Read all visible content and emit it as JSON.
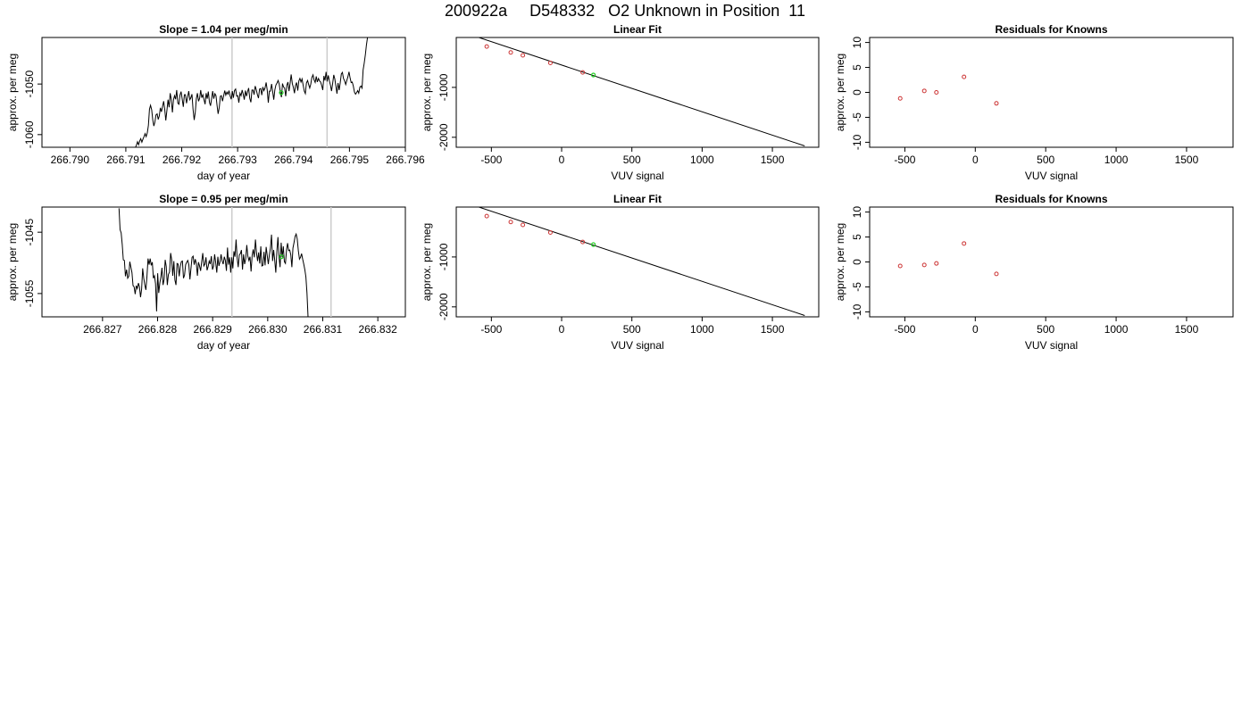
{
  "page_title": "200922a     D548332   O2 Unknown in Position  11",
  "colors": {
    "line": "#000000",
    "known_point": "#cc3333",
    "unknown_point": "#22cc22",
    "vline": "#cccccc",
    "frame": "#000000"
  },
  "chart_data": [
    {
      "type": "line",
      "title": "Slope =  1.04  per meg/min",
      "xlabel": "day of year",
      "ylabel": "approx. per meg",
      "xlim": [
        266.7895,
        266.796
      ],
      "ylim": [
        -1062.5,
        -1040.8
      ],
      "xticks": [
        "266.790",
        "266.791",
        "266.792",
        "266.793",
        "266.794",
        "266.795",
        "266.796"
      ],
      "xtick_values": [
        266.79,
        266.791,
        266.792,
        266.793,
        266.794,
        266.795,
        266.796
      ],
      "yticks": [
        "-1060",
        "-1050"
      ],
      "ytick_values": [
        -1060,
        -1050
      ],
      "vlines": [
        266.7929,
        266.7946
      ],
      "unknown_point": {
        "x": 266.79378,
        "y": -1051.7
      },
      "series": [
        {
          "x_start": 266.79115,
          "x_step": 1.95e-05,
          "values": [
            -1063.2,
            -1062.6,
            -1062.1,
            -1061.4,
            -1062.0,
            -1061.3,
            -1060.8,
            -1061.5,
            -1060.9,
            -1060.4,
            -1059.8,
            -1060.4,
            -1059.6,
            -1058.2,
            -1055.0,
            -1054.2,
            -1055.1,
            -1057.1,
            -1058.3,
            -1057.5,
            -1056.1,
            -1055.9,
            -1057.0,
            -1056.3,
            -1054.7,
            -1055.5,
            -1054.4,
            -1053.4,
            -1055.0,
            -1057.2,
            -1055.3,
            -1053.1,
            -1054.6,
            -1051.8,
            -1053.0,
            -1055.6,
            -1053.1,
            -1052.3,
            -1053.0,
            -1051.2,
            -1053.8,
            -1054.0,
            -1052.2,
            -1051.5,
            -1052.9,
            -1054.5,
            -1052.1,
            -1052.1,
            -1053.8,
            -1052.6,
            -1051.4,
            -1053.1,
            -1052.7,
            -1052.0,
            -1055.0,
            -1057.1,
            -1055.6,
            -1052.9,
            -1051.8,
            -1053.4,
            -1052.8,
            -1051.2,
            -1052.7,
            -1052.1,
            -1053.1,
            -1054.0,
            -1051.8,
            -1052.9,
            -1051.5,
            -1053.6,
            -1054.3,
            -1052.9,
            -1051.4,
            -1052.9,
            -1051.9,
            -1052.3,
            -1054.2,
            -1055.9,
            -1054.6,
            -1052.4,
            -1052.3,
            -1053.4,
            -1052.4,
            -1051.3,
            -1052.2,
            -1051.6,
            -1052.0,
            -1051.3,
            -1052.4,
            -1053.0,
            -1051.4,
            -1052.7,
            -1051.3,
            -1051.0,
            -1052.4,
            -1052.3,
            -1053.7,
            -1051.8,
            -1052.3,
            -1051.2,
            -1052.0,
            -1053.1,
            -1051.3,
            -1052.4,
            -1051.5,
            -1050.8,
            -1052.8,
            -1053.6,
            -1051.2,
            -1051.2,
            -1052.1,
            -1050.4,
            -1051.2,
            -1052.1,
            -1052.8,
            -1051.0,
            -1050.9,
            -1052.2,
            -1050.6,
            -1051.3,
            -1050.8,
            -1049.7,
            -1051.2,
            -1053.7,
            -1051.4,
            -1051.4,
            -1050.0,
            -1051.5,
            -1053.1,
            -1051.2,
            -1050.2,
            -1049.8,
            -1049.3,
            -1050.0,
            -1051.5,
            -1052.6,
            -1049.9,
            -1050.6,
            -1050.8,
            -1052.4,
            -1050.2,
            -1049.6,
            -1051.4,
            -1049.9,
            -1048.1,
            -1049.9,
            -1050.7,
            -1051.8,
            -1050.3,
            -1049.7,
            -1051.3,
            -1049.4,
            -1048.9,
            -1049.6,
            -1049.0,
            -1050.3,
            -1051.4,
            -1051.9,
            -1049.8,
            -1049.3,
            -1050.1,
            -1050.8,
            -1050.0,
            -1048.7,
            -1048.2,
            -1049.2,
            -1049.7,
            -1048.5,
            -1049.6,
            -1048.9,
            -1049.4,
            -1049.6,
            -1050.3,
            -1051.2,
            -1048.4,
            -1049.3,
            -1047.6,
            -1049.5,
            -1048.3,
            -1049.4,
            -1050.2,
            -1051.4,
            -1050.0,
            -1048.2,
            -1049.0,
            -1050.4,
            -1051.9,
            -1049.8,
            -1051.2,
            -1049.7,
            -1048.0,
            -1047.7,
            -1048.9,
            -1049.4,
            -1050.1,
            -1049.3,
            -1048.6,
            -1047.6,
            -1048.8,
            -1049.7,
            -1049.6,
            -1050.4,
            -1051.6,
            -1052.0,
            -1051.7,
            -1051.3,
            -1051.8,
            -1050.6,
            -1050.4,
            -1050.8,
            -1047.2,
            -1045.9,
            -1044.2,
            -1042.3,
            -1040.8
          ]
        }
      ]
    },
    {
      "type": "scatter",
      "title": "Linear Fit",
      "xlabel": "VUV signal",
      "ylabel": "approx. per meg",
      "xlim": [
        -750,
        1830
      ],
      "ylim": [
        -2200,
        0
      ],
      "xticks": [
        "-500",
        "0",
        "500",
        "1000",
        "1500"
      ],
      "xtick_values": [
        -500,
        0,
        500,
        1000,
        1500
      ],
      "yticks": [
        "-2000",
        "-1000"
      ],
      "ytick_values": [
        -2000,
        -1000
      ],
      "fit_line": {
        "x": [
          -650,
          1730
        ],
        "y": [
          57,
          -2173
        ]
      },
      "known_points": {
        "x": [
          -533,
          -362,
          -276,
          -80,
          150
        ],
        "y": [
          -181,
          -300,
          -358,
          -509,
          -699
        ]
      },
      "unknown_point": {
        "x": 226,
        "y": -751
      }
    },
    {
      "type": "scatter",
      "title": "Residuals for Knowns",
      "xlabel": "VUV signal",
      "ylabel": "approx. per meg",
      "xlim": [
        -750,
        1830
      ],
      "ylim": [
        -11,
        11
      ],
      "xticks": [
        "-500",
        "0",
        "500",
        "1000",
        "1500"
      ],
      "xtick_values": [
        -500,
        0,
        500,
        1000,
        1500
      ],
      "yticks": [
        "-10",
        "-5",
        "0",
        "5",
        "10"
      ],
      "ytick_values": [
        -10,
        -5,
        0,
        5,
        10
      ],
      "known_points": {
        "x": [
          -533,
          -362,
          -276,
          -80,
          150
        ],
        "y": [
          -1.2,
          0.3,
          0.0,
          3.1,
          -2.2
        ]
      }
    },
    {
      "type": "line",
      "title": "Slope =  0.95  per meg/min",
      "xlabel": "day of year",
      "ylabel": "approx. per meg",
      "xlim": [
        266.8259,
        266.8325
      ],
      "ylim": [
        -1058.8,
        -1040.9
      ],
      "xticks": [
        "266.827",
        "266.828",
        "266.829",
        "266.830",
        "266.831",
        "266.832"
      ],
      "xtick_values": [
        266.827,
        266.828,
        266.829,
        266.83,
        266.831,
        266.832
      ],
      "yticks": [
        "-1055",
        "-1045"
      ],
      "ytick_values": [
        -1055,
        -1045
      ],
      "vlines": [
        266.82935,
        266.83115
      ],
      "unknown_point": {
        "x": 266.83025,
        "y": -1049.0
      },
      "series": [
        {
          "x_start": 266.8273,
          "x_step": 1.95e-05,
          "values": [
            -1041.1,
            -1044.6,
            -1045.1,
            -1047.0,
            -1049.5,
            -1049.6,
            -1052.2,
            -1051.1,
            -1052.5,
            -1052.2,
            -1049.8,
            -1050.7,
            -1051.6,
            -1053.7,
            -1053.9,
            -1055.1,
            -1053.7,
            -1054.2,
            -1053.3,
            -1053.9,
            -1055.6,
            -1054.3,
            -1050.9,
            -1052.5,
            -1053.6,
            -1054.4,
            -1052.2,
            -1049.3,
            -1050.3,
            -1049.3,
            -1050.4,
            -1049.9,
            -1052.5,
            -1052.1,
            -1053.4,
            -1057.9,
            -1051.7,
            -1054.9,
            -1053.3,
            -1052.3,
            -1050.8,
            -1053.6,
            -1052.7,
            -1049.5,
            -1050.6,
            -1053.6,
            -1051.9,
            -1051.5,
            -1048.4,
            -1049.5,
            -1052.1,
            -1049.7,
            -1052.8,
            -1053.6,
            -1050.1,
            -1050.2,
            -1052.2,
            -1050.6,
            -1049.8,
            -1049.7,
            -1052.5,
            -1052.0,
            -1050.3,
            -1049.9,
            -1049.6,
            -1050.3,
            -1052.7,
            -1050.9,
            -1049.1,
            -1048.9,
            -1050.3,
            -1049.4,
            -1050.1,
            -1052.1,
            -1049.9,
            -1050.5,
            -1051.3,
            -1049.8,
            -1048.4,
            -1050.5,
            -1050.2,
            -1049.1,
            -1051.2,
            -1050.6,
            -1049.7,
            -1050.2,
            -1048.9,
            -1051.1,
            -1050.5,
            -1048.6,
            -1050.0,
            -1051.6,
            -1049.0,
            -1050.5,
            -1049.8,
            -1048.6,
            -1049.7,
            -1050.2,
            -1049.0,
            -1049.6,
            -1051.3,
            -1047.5,
            -1050.3,
            -1049.1,
            -1051.6,
            -1049.1,
            -1050.9,
            -1048.1,
            -1049.0,
            -1046.2,
            -1049.2,
            -1050.7,
            -1048.7,
            -1048.5,
            -1047.9,
            -1051.1,
            -1048.6,
            -1050.2,
            -1049.3,
            -1047.1,
            -1048.9,
            -1049.6,
            -1049.0,
            -1051.4,
            -1048.8,
            -1047.8,
            -1049.1,
            -1046.2,
            -1048.4,
            -1049.7,
            -1048.3,
            -1050.1,
            -1047.3,
            -1050.5,
            -1050.4,
            -1048.2,
            -1050.4,
            -1047.4,
            -1048.8,
            -1050.2,
            -1048.7,
            -1047.6,
            -1045.4,
            -1049.7,
            -1047.9,
            -1049.6,
            -1051.6,
            -1048.1,
            -1045.8,
            -1049.0,
            -1050.7,
            -1046.7,
            -1049.1,
            -1047.3,
            -1049.8,
            -1050.1,
            -1047.9,
            -1046.8,
            -1048.0,
            -1047.9,
            -1048.7,
            -1050.7,
            -1047.6,
            -1046.7,
            -1045.7,
            -1045.3,
            -1046.1,
            -1048.1,
            -1049.4,
            -1049.1,
            -1048.5,
            -1049.4,
            -1050.2,
            -1051.1,
            -1052.3,
            -1054.9,
            -1058.8
          ]
        }
      ]
    },
    {
      "type": "scatter",
      "title": "Linear Fit",
      "xlabel": "VUV signal",
      "ylabel": "approx. per meg",
      "xlim": [
        -750,
        1830
      ],
      "ylim": [
        -2200,
        0
      ],
      "xticks": [
        "-500",
        "0",
        "500",
        "1000",
        "1500"
      ],
      "xtick_values": [
        -500,
        0,
        500,
        1000,
        1500
      ],
      "yticks": [
        "-2000",
        "-1000"
      ],
      "ytick_values": [
        -2000,
        -1000
      ],
      "fit_line": {
        "x": [
          -650,
          1730
        ],
        "y": [
          57,
          -2173
        ]
      },
      "known_points": {
        "x": [
          -533,
          -362,
          -276,
          -80,
          150
        ],
        "y": [
          -181,
          -300,
          -358,
          -509,
          -699
        ]
      },
      "unknown_point": {
        "x": 226,
        "y": -751
      }
    },
    {
      "type": "scatter",
      "title": "Residuals for Knowns",
      "xlabel": "VUV signal",
      "ylabel": "approx. per meg",
      "xlim": [
        -750,
        1830
      ],
      "ylim": [
        -11,
        11
      ],
      "xticks": [
        "-500",
        "0",
        "500",
        "1000",
        "1500"
      ],
      "xtick_values": [
        -500,
        0,
        500,
        1000,
        1500
      ],
      "yticks": [
        "-10",
        "-5",
        "0",
        "5",
        "10"
      ],
      "ytick_values": [
        -10,
        -5,
        0,
        5,
        10
      ],
      "known_points": {
        "x": [
          -533,
          -362,
          -276,
          -80,
          150
        ],
        "y": [
          -0.8,
          -0.6,
          -0.3,
          3.7,
          -2.4
        ]
      }
    }
  ]
}
